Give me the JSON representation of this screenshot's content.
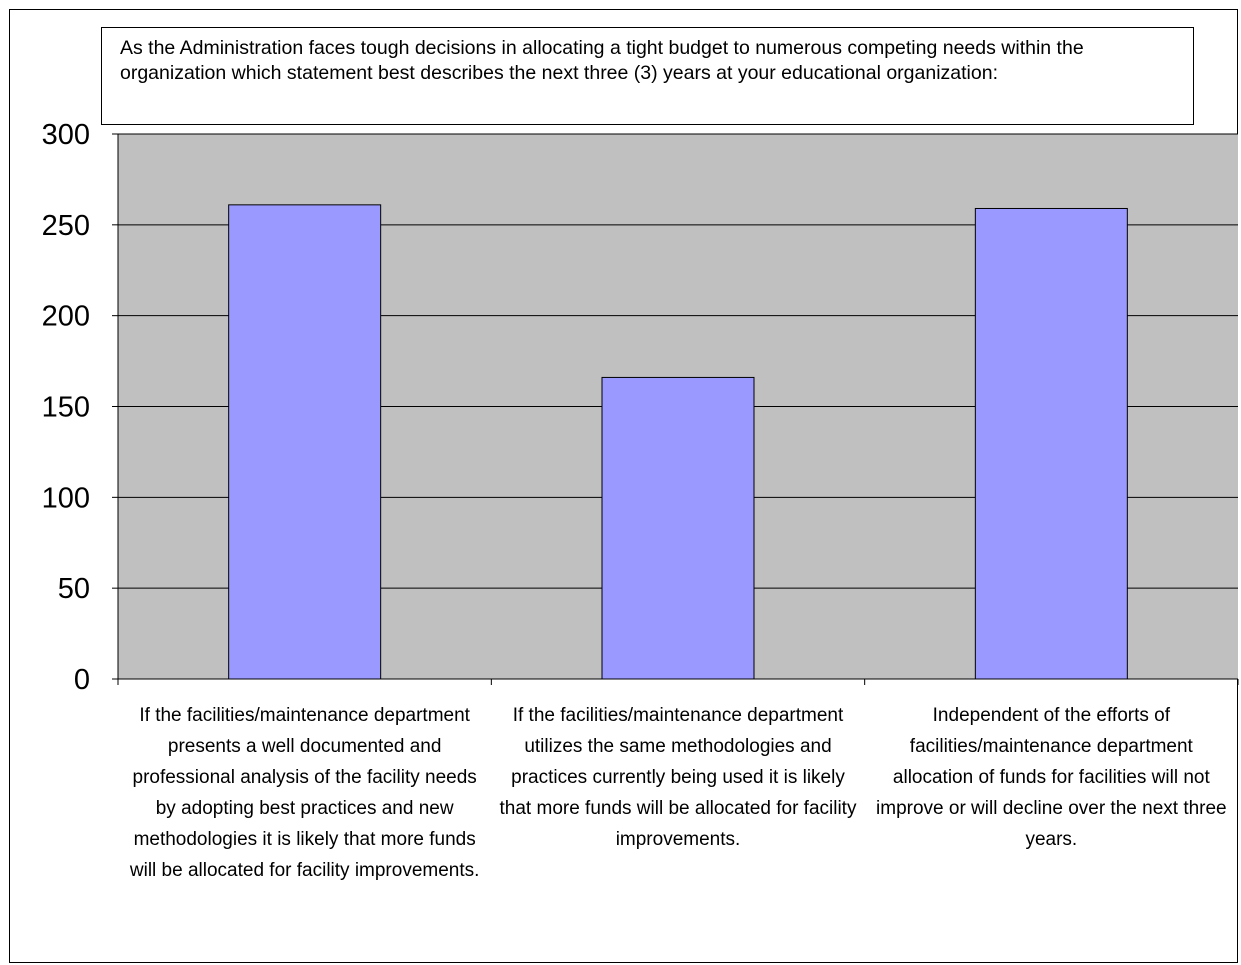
{
  "chart_data": {
    "type": "bar",
    "title": "As the Administration faces tough decisions in allocating a tight budget to numerous competing needs within the organization which statement best describes the next three (3) years at your educational organization:",
    "categories": [
      "If the facilities/maintenance department presents a well documented and professional analysis of the facility needs by adopting best practices and new methodologies it is likely that more funds will be allocated for facility improvements.",
      "If the facilities/maintenance department utilizes the same methodologies and practices currently being used it is likely that more funds will be allocated for facility improvements.",
      "Independent of the efforts of facilities/maintenance department allocation of funds for facilities will not improve or will decline over the next three years."
    ],
    "values": [
      261,
      166,
      259
    ],
    "ylim": [
      0,
      300
    ],
    "yticks": [
      0,
      50,
      100,
      150,
      200,
      250,
      300
    ],
    "xlabel": "",
    "ylabel": "",
    "grid": true,
    "legend": "none",
    "colors": {
      "bar_fill": "#9999ff",
      "bar_stroke": "#000000",
      "plot_background": "#c0c0c0",
      "gridline": "#000000"
    }
  }
}
